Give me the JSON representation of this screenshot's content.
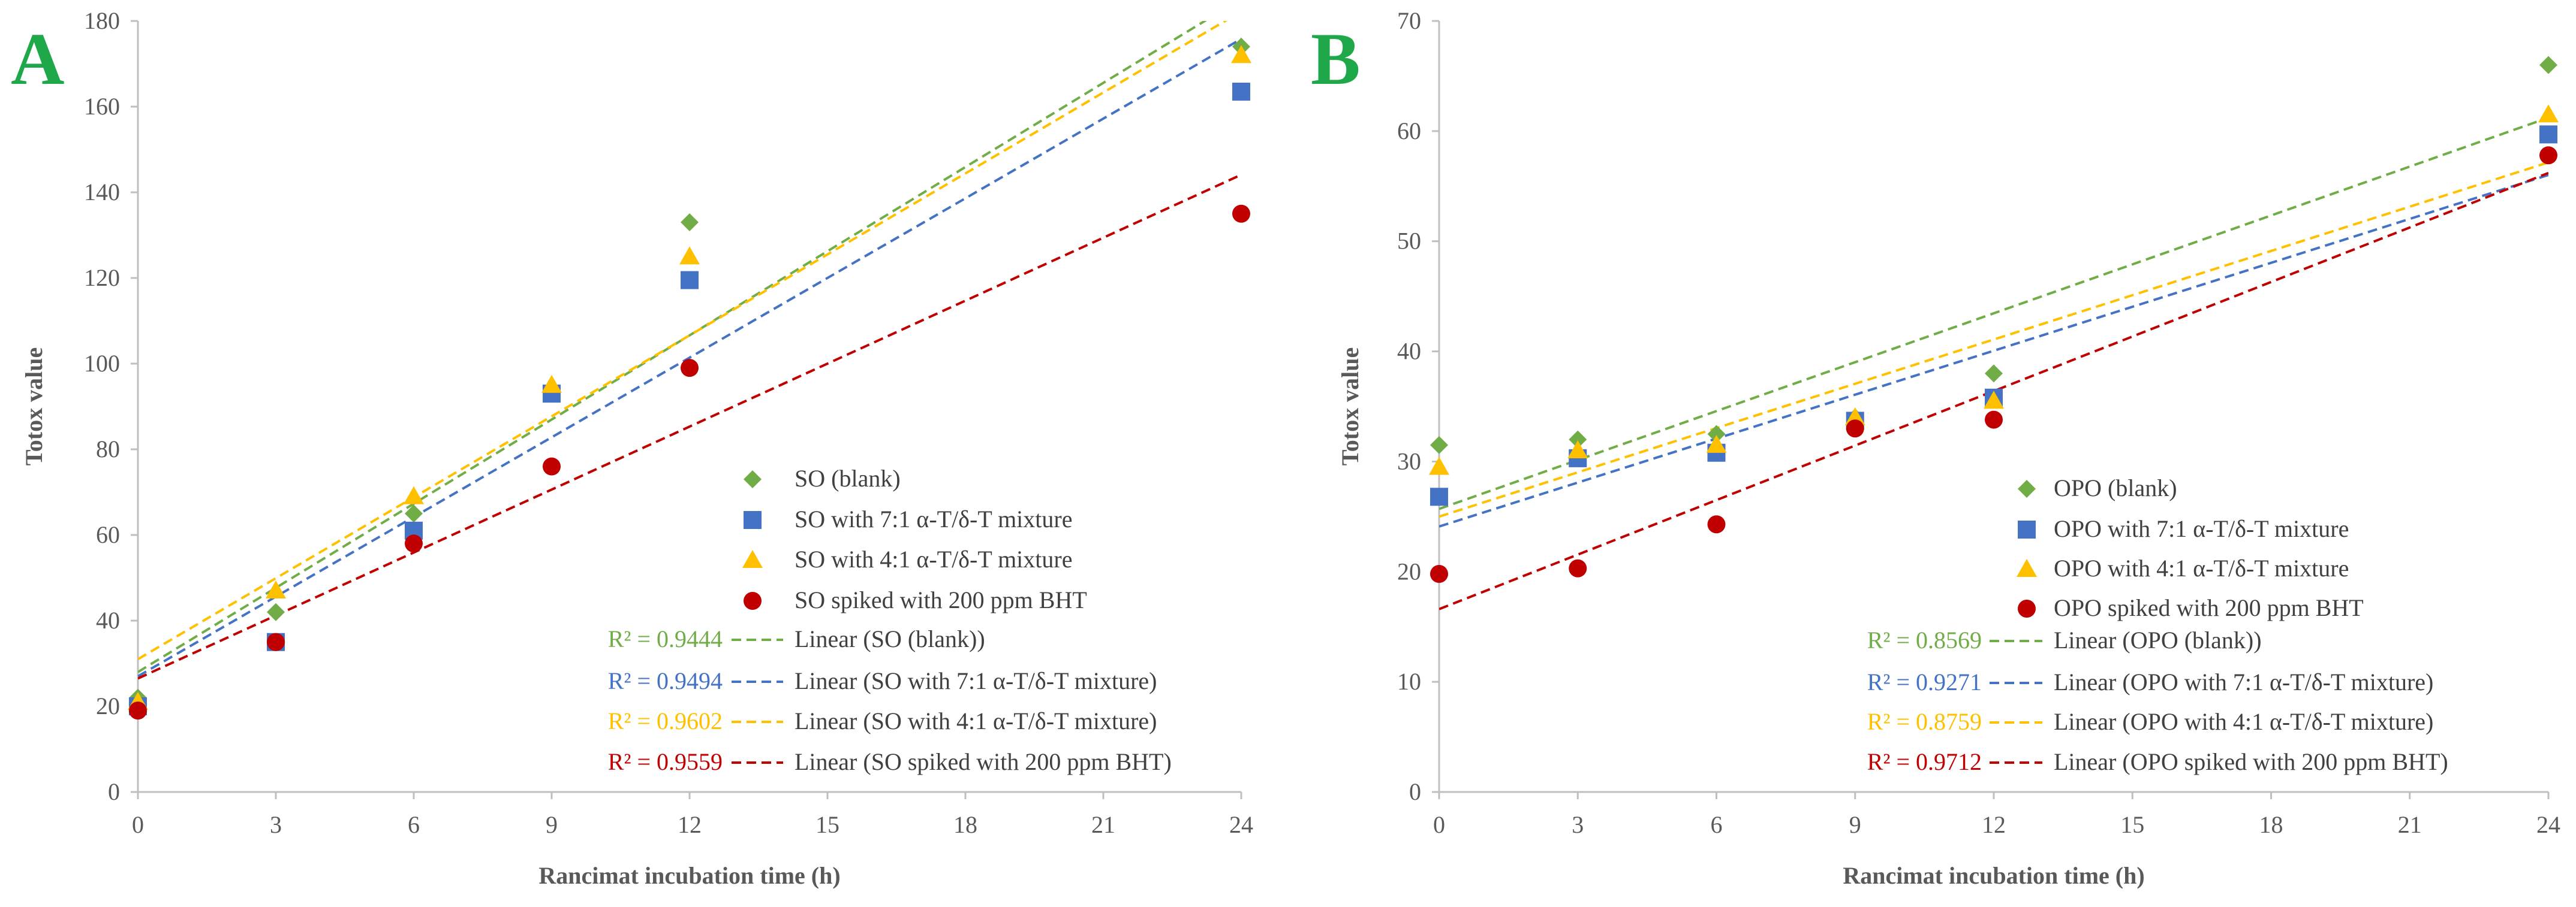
{
  "chart_data": [
    {
      "type": "scatter",
      "panel_label": "A",
      "panel_label_color": "#1FA84A",
      "xlabel": "Rancimat incubation time (h)",
      "ylabel": "Totox value",
      "xlim": [
        0,
        24
      ],
      "ylim": [
        0,
        180
      ],
      "xticks": [
        0,
        3,
        6,
        9,
        12,
        15,
        18,
        21,
        24
      ],
      "yticks": [
        0,
        20,
        40,
        60,
        80,
        100,
        120,
        140,
        160,
        180
      ],
      "legend_position": "bottom-right",
      "series": [
        {
          "name": "SO (blank)",
          "marker": "diamond",
          "color": "#70AD47",
          "x": [
            0,
            3,
            6,
            9,
            12,
            24
          ],
          "y": [
            22,
            42,
            65,
            93,
            133,
            174
          ],
          "trend_label": "Linear (SO (blank))",
          "trend": [
            28,
            6.55
          ],
          "r2": "R² = 0.9444"
        },
        {
          "name": "SO with 7:1 α-T/δ-T mixture",
          "marker": "square",
          "color": "#4472C4",
          "x": [
            0,
            3,
            6,
            9,
            12,
            24
          ],
          "y": [
            20,
            35,
            61,
            93,
            119.5,
            163.5
          ],
          "trend_label": "Linear (SO with 7:1 α-T/δ-T mixture)",
          "trend": [
            27,
            6.2
          ],
          "r2": "R² = 0.9494"
        },
        {
          "name": "SO with 4:1 α-T/δ-T mixture",
          "marker": "triangle",
          "color": "#FFC000",
          "x": [
            0,
            3,
            6,
            9,
            12,
            24
          ],
          "y": [
            21,
            47,
            69,
            95,
            125,
            172
          ],
          "trend_label": "Linear (SO with 4:1 α-T/δ-T mixture)",
          "trend": [
            31,
            6.3
          ],
          "r2": "R² = 0.9602"
        },
        {
          "name": "SO spiked with 200 ppm BHT",
          "marker": "circle",
          "color": "#C00000",
          "x": [
            0,
            3,
            6,
            9,
            12,
            24
          ],
          "y": [
            19,
            35,
            58,
            76,
            99,
            135
          ],
          "trend_label": "Linear (SO spiked with 200 ppm BHT)",
          "trend": [
            26.5,
            4.9
          ],
          "r2": "R² = 0.9559"
        }
      ]
    },
    {
      "type": "scatter",
      "panel_label": "B",
      "panel_label_color": "#1FA84A",
      "xlabel": "Rancimat incubation time (h)",
      "ylabel": "Totox value",
      "xlim": [
        0,
        24
      ],
      "ylim": [
        0,
        70
      ],
      "xticks": [
        0,
        3,
        6,
        9,
        12,
        15,
        18,
        21,
        24
      ],
      "yticks": [
        0,
        10,
        20,
        30,
        40,
        50,
        60,
        70
      ],
      "legend_position": "bottom-right",
      "series": [
        {
          "name": "OPO (blank)",
          "marker": "diamond",
          "color": "#70AD47",
          "x": [
            0,
            3,
            6,
            9,
            12,
            24
          ],
          "y": [
            31.5,
            32,
            32.5,
            34,
            38,
            66
          ],
          "trend_label": "Linear (OPO (blank))",
          "trend": [
            25.7,
            1.48
          ],
          "r2": "R² = 0.8569"
        },
        {
          "name": "OPO with 7:1 α-T/δ-T mixture",
          "marker": "square",
          "color": "#4472C4",
          "x": [
            0,
            3,
            6,
            9,
            12,
            24
          ],
          "y": [
            26.8,
            30.3,
            30.8,
            33.7,
            35.8,
            59.7
          ],
          "trend_label": "Linear (OPO with 7:1 α-T/δ-T mixture)",
          "trend": [
            24.1,
            1.33
          ],
          "r2": "R² = 0.9271"
        },
        {
          "name": "OPO with 4:1 α-T/δ-T mixture",
          "marker": "triangle",
          "color": "#FFC000",
          "x": [
            0,
            3,
            6,
            9,
            12,
            24
          ],
          "y": [
            29.5,
            31,
            31.5,
            34,
            35.5,
            61.5
          ],
          "trend_label": "Linear (OPO with 4:1 α-T/δ-T mixture)",
          "trend": [
            25,
            1.34
          ],
          "r2": "R² = 0.8759"
        },
        {
          "name": "OPO spiked with 200 ppm BHT",
          "marker": "circle",
          "color": "#C00000",
          "x": [
            0,
            3,
            6,
            9,
            12,
            24
          ],
          "y": [
            19.8,
            20.3,
            24.3,
            33,
            33.8,
            57.8
          ],
          "trend_label": "Linear (OPO spiked with 200 ppm BHT)",
          "trend": [
            16.6,
            1.65
          ],
          "r2": "R² = 0.9712"
        }
      ]
    }
  ]
}
